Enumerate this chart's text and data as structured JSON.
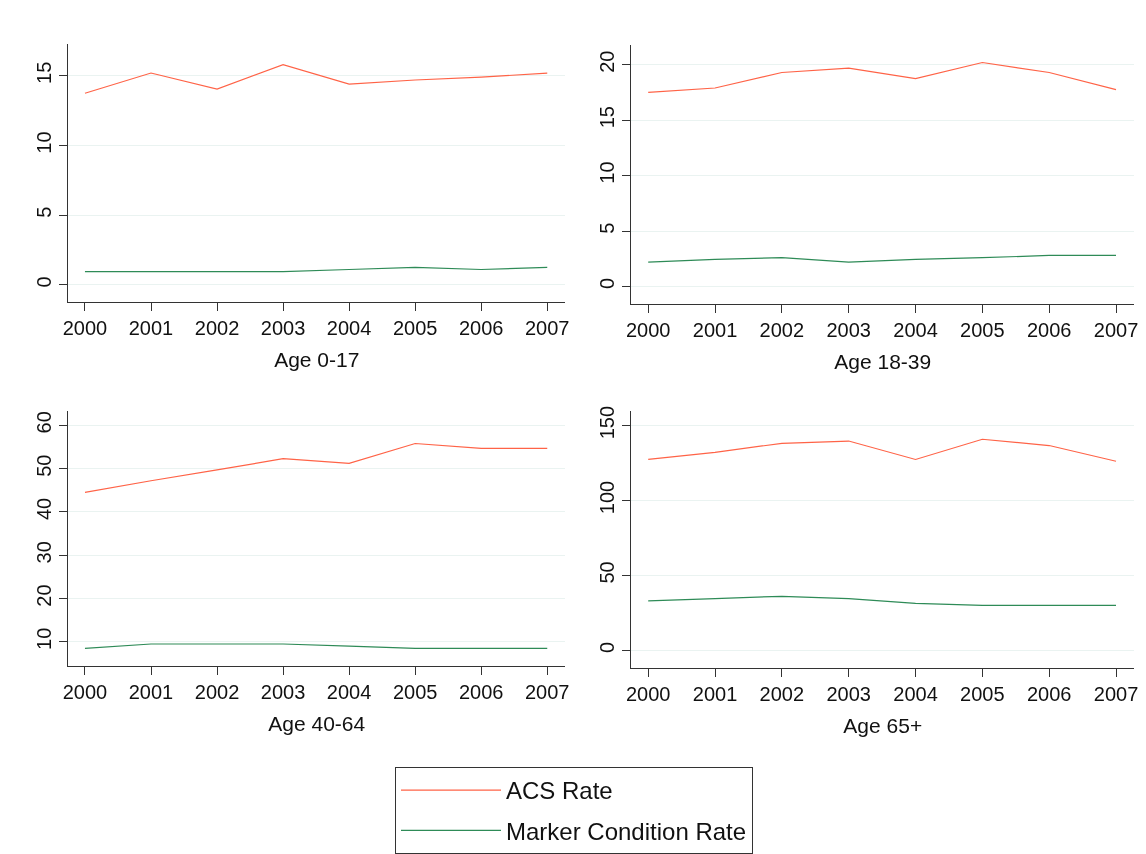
{
  "chart_data": [
    {
      "type": "line",
      "xlabel": "Age 0-17",
      "x": [
        2000,
        2001,
        2002,
        2003,
        2004,
        2005,
        2006,
        2007
      ],
      "xlim": [
        1999.75,
        2007.27
      ],
      "xticks": [
        2000,
        2001,
        2002,
        2003,
        2004,
        2005,
        2006,
        2007
      ],
      "ylim": [
        -1.25,
        17.3
      ],
      "yticks": [
        0,
        5,
        10,
        15
      ],
      "grid": "y",
      "legend": "bottom",
      "series": [
        {
          "name": "ACS Rate",
          "color": "#ff6347",
          "values": [
            13.75,
            15.2,
            14.05,
            15.8,
            14.4,
            14.7,
            14.9,
            15.2
          ]
        },
        {
          "name": "Marker Condition Rate",
          "color": "#2e8b57",
          "values": [
            0.95,
            0.95,
            0.95,
            0.95,
            1.1,
            1.25,
            1.1,
            1.25
          ]
        }
      ]
    },
    {
      "type": "line",
      "xlabel": "Age 18-39",
      "x": [
        2000,
        2001,
        2002,
        2003,
        2004,
        2005,
        2006,
        2007
      ],
      "xlim": [
        1999.75,
        2007.27
      ],
      "xticks": [
        2000,
        2001,
        2002,
        2003,
        2004,
        2005,
        2006,
        2007
      ],
      "ylim": [
        -1.6,
        21.8
      ],
      "yticks": [
        0,
        5,
        10,
        15,
        20
      ],
      "grid": "y",
      "legend": "bottom",
      "series": [
        {
          "name": "ACS Rate",
          "color": "#ff6347",
          "values": [
            17.5,
            17.9,
            19.3,
            19.7,
            18.75,
            20.2,
            19.3,
            17.75
          ]
        },
        {
          "name": "Marker Condition Rate",
          "color": "#2e8b57",
          "values": [
            2.2,
            2.45,
            2.6,
            2.2,
            2.45,
            2.6,
            2.8,
            2.8
          ]
        }
      ]
    },
    {
      "type": "line",
      "xlabel": "Age 40-64",
      "x": [
        2000,
        2001,
        2002,
        2003,
        2004,
        2005,
        2006,
        2007
      ],
      "xlim": [
        1999.75,
        2007.27
      ],
      "xticks": [
        2000,
        2001,
        2002,
        2003,
        2004,
        2005,
        2006,
        2007
      ],
      "ylim": [
        4.4,
        63.4
      ],
      "yticks": [
        10,
        20,
        30,
        40,
        50,
        60
      ],
      "grid": "y",
      "legend": "bottom",
      "series": [
        {
          "name": "ACS Rate",
          "color": "#ff6347",
          "values": [
            44.5,
            47.2,
            49.7,
            52.3,
            51.2,
            55.8,
            54.7,
            54.7
          ]
        },
        {
          "name": "Marker Condition Rate",
          "color": "#2e8b57",
          "values": [
            8.5,
            9.5,
            9.5,
            9.5,
            9.0,
            8.5,
            8.5,
            8.5
          ]
        }
      ]
    },
    {
      "type": "line",
      "xlabel": "Age 65+",
      "x": [
        2000,
        2001,
        2002,
        2003,
        2004,
        2005,
        2006,
        2007
      ],
      "xlim": [
        1999.75,
        2007.27
      ],
      "xticks": [
        2000,
        2001,
        2002,
        2003,
        2004,
        2005,
        2006,
        2007
      ],
      "ylim": [
        -11.8,
        160
      ],
      "yticks": [
        0,
        50,
        100,
        150
      ],
      "grid": "y",
      "legend": "bottom",
      "series": [
        {
          "name": "ACS Rate",
          "color": "#ff6347",
          "values": [
            127.4,
            132.1,
            138.2,
            139.7,
            127.4,
            140.9,
            136.7,
            126.2
          ]
        },
        {
          "name": "Marker Condition Rate",
          "color": "#2e8b57",
          "values": [
            33.1,
            34.6,
            36.1,
            34.6,
            31.4,
            30.0,
            30.0,
            30.0
          ]
        }
      ]
    }
  ]
}
